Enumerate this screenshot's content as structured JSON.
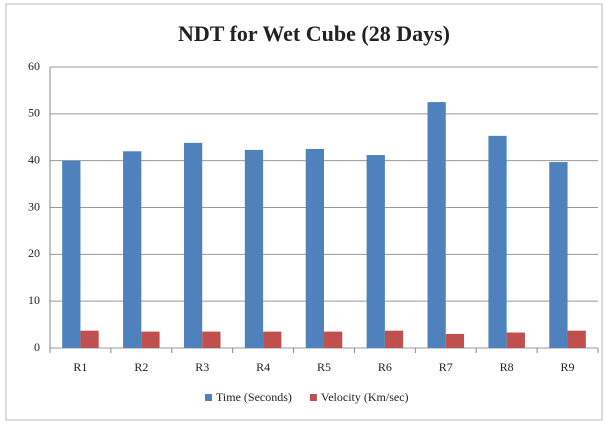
{
  "chart_data": {
    "type": "bar",
    "title": "NDT for Wet Cube (28 Days)",
    "categories": [
      "R1",
      "R2",
      "R3",
      "R4",
      "R5",
      "R6",
      "R7",
      "R8",
      "R9"
    ],
    "series": [
      {
        "name": "Time (Seconds)",
        "color": "#4f81bd",
        "values": [
          40,
          42,
          43.8,
          42.3,
          42.5,
          41.2,
          52.5,
          45.3,
          39.7
        ]
      },
      {
        "name": "Velocity (Km/sec)",
        "color": "#c0504d",
        "values": [
          3.7,
          3.5,
          3.5,
          3.5,
          3.5,
          3.7,
          3.0,
          3.3,
          3.7
        ]
      }
    ],
    "ylim": [
      0,
      60
    ],
    "yticks": [
      0,
      10,
      20,
      30,
      40,
      50,
      60
    ],
    "grid": true,
    "legend": "bottom"
  }
}
